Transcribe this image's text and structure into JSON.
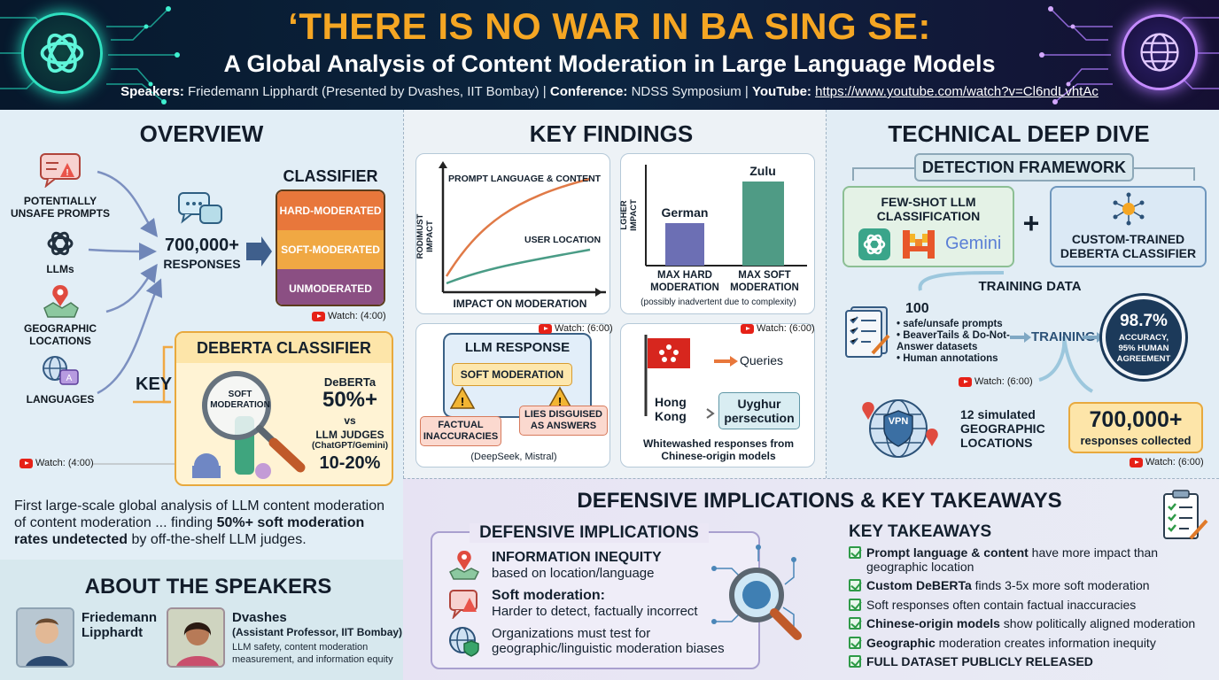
{
  "header": {
    "title": "‘THERE IS NO WAR IN BA SING SE:",
    "subtitle": "A Global Analysis of Content Moderation in Large Language Models",
    "speakers_label": "Speakers:",
    "speakers_value": "Friedemann Lipphardt (Presented by Dvashes, IIT Bombay)",
    "conference_label": "Conference:",
    "conference_value": "NDSS Symposium",
    "youtube_label": "YouTube:",
    "youtube_url": "https://www.youtube.com/watch?v=Cl6ndLvhtAc"
  },
  "overview": {
    "title": "OVERVIEW",
    "inputs": [
      "POTENTIALLY UNSAFE PROMPTS",
      "LLMs",
      "GEOGRAPHIC LOCATIONS",
      "LANGUAGES"
    ],
    "responses_count": "700,000+",
    "responses_label": "RESPONSES",
    "classifier_title": "CLASSIFIER",
    "classifier_rows": [
      {
        "label": "HARD-MODERATED",
        "color": "#e8773b"
      },
      {
        "label": "SOFT-MODERATED",
        "color": "#f0a843"
      },
      {
        "label": "UNMODERATED",
        "color": "#8b4f83"
      }
    ],
    "watch_classifier": "Watch: (4:00)",
    "key_label": "KEY",
    "deberta_title": "DEBERTA CLASSIFIER",
    "soft_moderation_label": "SOFT MODERATION",
    "deberta_name": "DeBERTa",
    "deberta_value": "50%+",
    "vs_label": "vs",
    "judges_label": "LLM JUDGES",
    "judges_sub": "(ChatGPT/Gemini)",
    "judges_value": "10-20%",
    "watch_deberta": "Watch: (4:00)",
    "summary_1": "First large-scale global analysis of LLM content moderation of content moderation ... finding ",
    "summary_bold": "50%+ soft moderation rates undetected",
    "summary_2": " by off-the-shelf LLM judges."
  },
  "speakers": {
    "title": "ABOUT THE SPEAKERS",
    "first_name": "Friedemann",
    "first_last": "Lipphardt",
    "second_name": "Dvashes",
    "second_role": "(Assistant Professor, IIT Bombay)",
    "second_desc_1": "LLM safety, content moderation",
    "second_desc_2": "measurement, and information equity"
  },
  "findings": {
    "title": "KEY FINDINGS",
    "chart1_ylabel": "RODIMUST IMPACT",
    "chart1_xlabel": "IMPACT ON MODERATION",
    "chart1_series_1": "PROMPT LANGUAGE & CONTENT",
    "chart1_series_2": "USER LOCATION",
    "chart2_ylabel": "LGHER IMPACT",
    "chart2_bar1_name": "German",
    "chart2_bar2_name": "Zulu",
    "chart2_cat1": "MAX HARD MODERATION",
    "chart2_cat2": "MAX SOFT MODERATION",
    "chart2_note": "(possibly inadvertent due to complexity)",
    "watch_c3": "Watch: (6:00)",
    "watch_c4": "Watch: (6:00)",
    "llm_response_title": "LLM RESPONSE",
    "soft_moderation_tag": "SOFT MODERATION",
    "factual_tag": "FACTUAL INACCURACIES",
    "lies_tag": "LIES DISGUISED AS ANSWERS",
    "c3_caption": "(DeepSeek, Mistral)",
    "queries_label": "Queries",
    "hk_label": "Hong Kong",
    "uyghur_label": "Uyghur persecution",
    "c4_caption": "Whitewashed responses from Chinese-origin models"
  },
  "tech": {
    "title": "TECHNICAL DEEP DIVE",
    "framework_title": "DETECTION FRAMEWORK",
    "fewshot_title": "FEW-SHOT LLM CLASSIFICATION",
    "gemini_label": "Gemini",
    "plus": "+",
    "custom_title": "CUSTOM-TRAINED DEBERTA CLASSIFIER",
    "training_data_title": "TRAINING DATA",
    "td_count": "100",
    "td_item_1": "safe/unsafe prompts",
    "td_item_2": "BeaverTails & Do-Not-Answer datasets",
    "td_item_3": "Human annotations",
    "training_label": "TRAINING",
    "accuracy_value": "98.7%",
    "accuracy_label": "ACCURACY, 95% HUMAN AGREEMENT",
    "watch_training": "Watch: (6:00)",
    "vpn_label": "VPN",
    "locations_count": "12 simulated",
    "locations_label": "GEOGRAPHIC LOCATIONS",
    "collected_value": "700,000+",
    "collected_label": "responses collected",
    "watch_collected": "Watch: (6:00)"
  },
  "defense": {
    "title": "DEFENSIVE IMPLICATIONS & KEY TAKEAWAYS",
    "implications_title": "DEFENSIVE IMPLICATIONS",
    "imp1_title": "INFORMATION INEQUITY",
    "imp1_desc": "based on location/language",
    "imp2_title": "Soft moderation:",
    "imp2_desc": "Harder to detect, factually incorrect",
    "imp3_desc_1": "Organizations must test for",
    "imp3_desc_2": "geographic/linguistic moderation biases",
    "takeaways_title": "KEY TAKEAWAYS",
    "takeaways": [
      {
        "bold": "Prompt language & content",
        "rest": " have more impact than",
        "line2": "geographic location"
      },
      {
        "bold": "Custom DeBERTa",
        "rest": " finds 3-5x more soft moderation",
        "line2": ""
      },
      {
        "bold": "",
        "rest": "Soft responses often contain factual inaccuracies",
        "line2": ""
      },
      {
        "bold": "Chinese-origin models",
        "rest": " show politically aligned moderation",
        "line2": ""
      },
      {
        "bold": "Geographic",
        "rest": " moderation creates information inequity",
        "line2": ""
      },
      {
        "bold": "FULL DATASET PUBLICLY RELEASED",
        "rest": "",
        "line2": ""
      }
    ]
  }
}
